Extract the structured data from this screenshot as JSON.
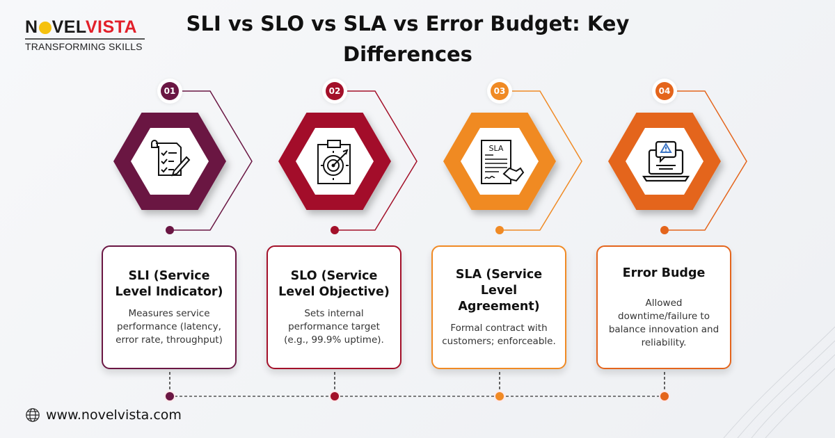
{
  "logo": {
    "brand_part1": "N",
    "brand_part2": "VEL",
    "brand_part3": "VISTA",
    "tagline": "TRANSFORMING SKILLS"
  },
  "title": "SLI vs SLO vs SLA vs Error Budget: Key Differences",
  "colors": {
    "item1": "#6a1643",
    "item2": "#a31029",
    "item3": "#f08a24",
    "item4": "#e4651c"
  },
  "items": [
    {
      "number": "01",
      "title": "SLI (Service Level Indicator)",
      "description": "Measures service performance (latency, error rate, throughput)",
      "icon": "checklist-pencil-icon"
    },
    {
      "number": "02",
      "title": "SLO (Service Level Objective)",
      "description": "Sets internal performance target (e.g., 99.9% uptime).",
      "icon": "clipboard-target-icon"
    },
    {
      "number": "03",
      "title": "SLA (Service Level Agreement)",
      "description": "Formal contract with customers; enforceable.",
      "icon": "sla-contract-handshake-icon",
      "icon_text": "SLA"
    },
    {
      "number": "04",
      "title": "Error Budge",
      "description": "Allowed downtime/failure to balance innovation and reliability.",
      "icon": "laptop-warning-icon"
    }
  ],
  "footer": {
    "website": "www.novelvista.com",
    "icon": "globe-icon"
  }
}
